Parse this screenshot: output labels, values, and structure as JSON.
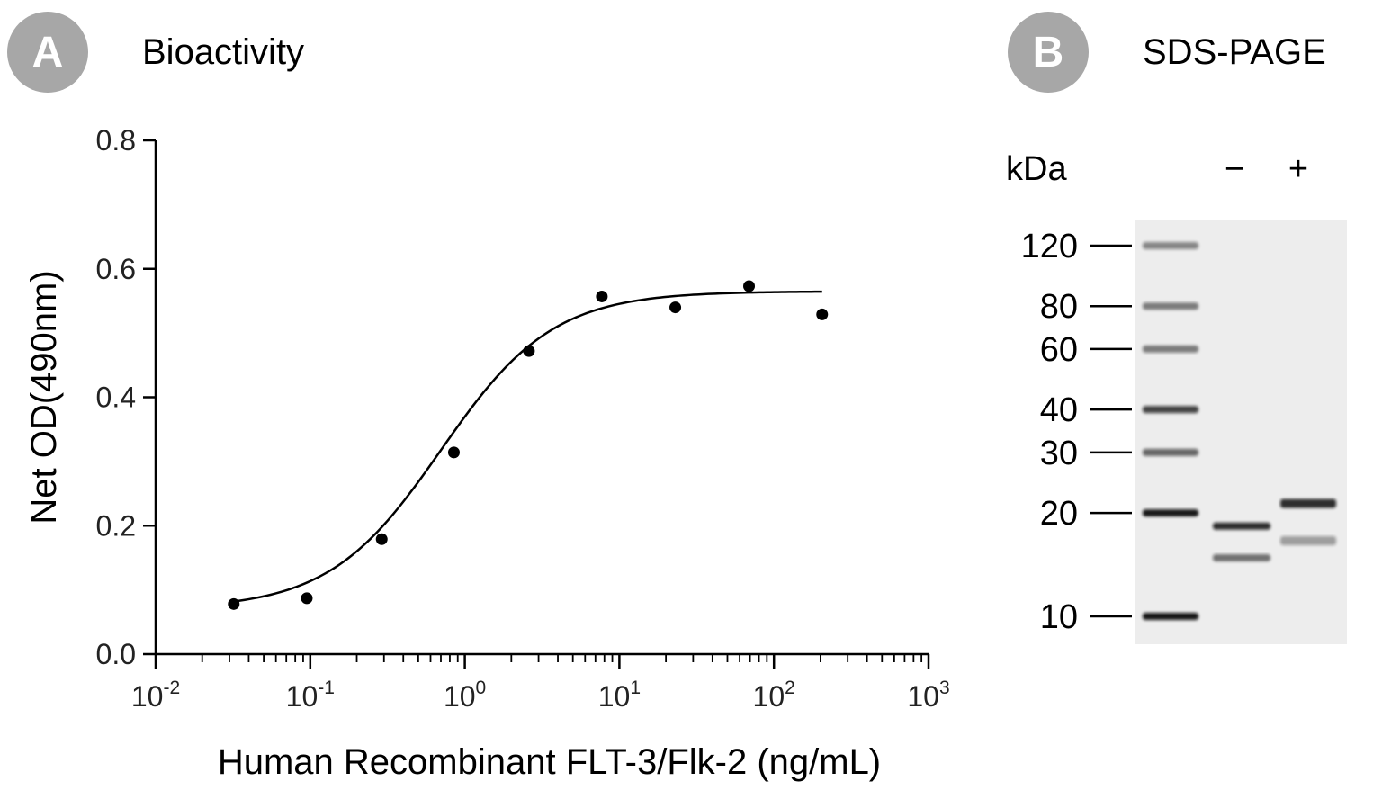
{
  "panel_a": {
    "badge": "A",
    "title": "Bioactivity"
  },
  "panel_b": {
    "badge": "B",
    "title": "SDS-PAGE",
    "kda_label": "kDa",
    "lane_labels": [
      "−",
      "+"
    ],
    "markers": [
      "120",
      "80",
      "60",
      "40",
      "30",
      "20",
      "10"
    ],
    "bands": {
      "ladder": [
        120,
        80,
        60,
        40,
        30,
        20,
        10
      ],
      "minus": [
        {
          "kda": 18.3,
          "strength": 0.85
        },
        {
          "kda": 14.8,
          "strength": 0.55
        }
      ],
      "plus": [
        {
          "kda": 21.3,
          "strength": 0.85
        },
        {
          "kda": 16.6,
          "strength": 0.35
        }
      ]
    }
  },
  "chart_data": {
    "type": "scatter",
    "title": "",
    "xlabel": "Human Recombinant FLT-3/Flk-2 (ng/mL)",
    "ylabel": "Net OD(490nm)",
    "xscale": "log",
    "xlim": [
      0.01,
      1000
    ],
    "ylim": [
      0.0,
      0.8
    ],
    "x_ticks": [
      {
        "base": "10",
        "exp": "-2",
        "value": 0.01
      },
      {
        "base": "10",
        "exp": "-1",
        "value": 0.1
      },
      {
        "base": "10",
        "exp": "0",
        "value": 1
      },
      {
        "base": "10",
        "exp": "1",
        "value": 10
      },
      {
        "base": "10",
        "exp": "2",
        "value": 100
      },
      {
        "base": "10",
        "exp": "3",
        "value": 1000
      }
    ],
    "y_ticks": [
      "0.0",
      "0.2",
      "0.4",
      "0.6",
      "0.8"
    ],
    "series": [
      {
        "x": [
          0.032,
          0.095,
          0.29,
          0.85,
          2.6,
          7.7,
          23,
          69,
          205
        ],
        "y": [
          0.078,
          0.087,
          0.179,
          0.314,
          0.472,
          0.557,
          0.54,
          0.573,
          0.529
        ]
      }
    ],
    "fit_curve": {
      "bottom": 0.07,
      "top": 0.565,
      "ec50": 0.7,
      "hill": 1.2
    },
    "colors": {
      "points": "#000000",
      "curve": "#000000",
      "axis": "#000000"
    }
  }
}
